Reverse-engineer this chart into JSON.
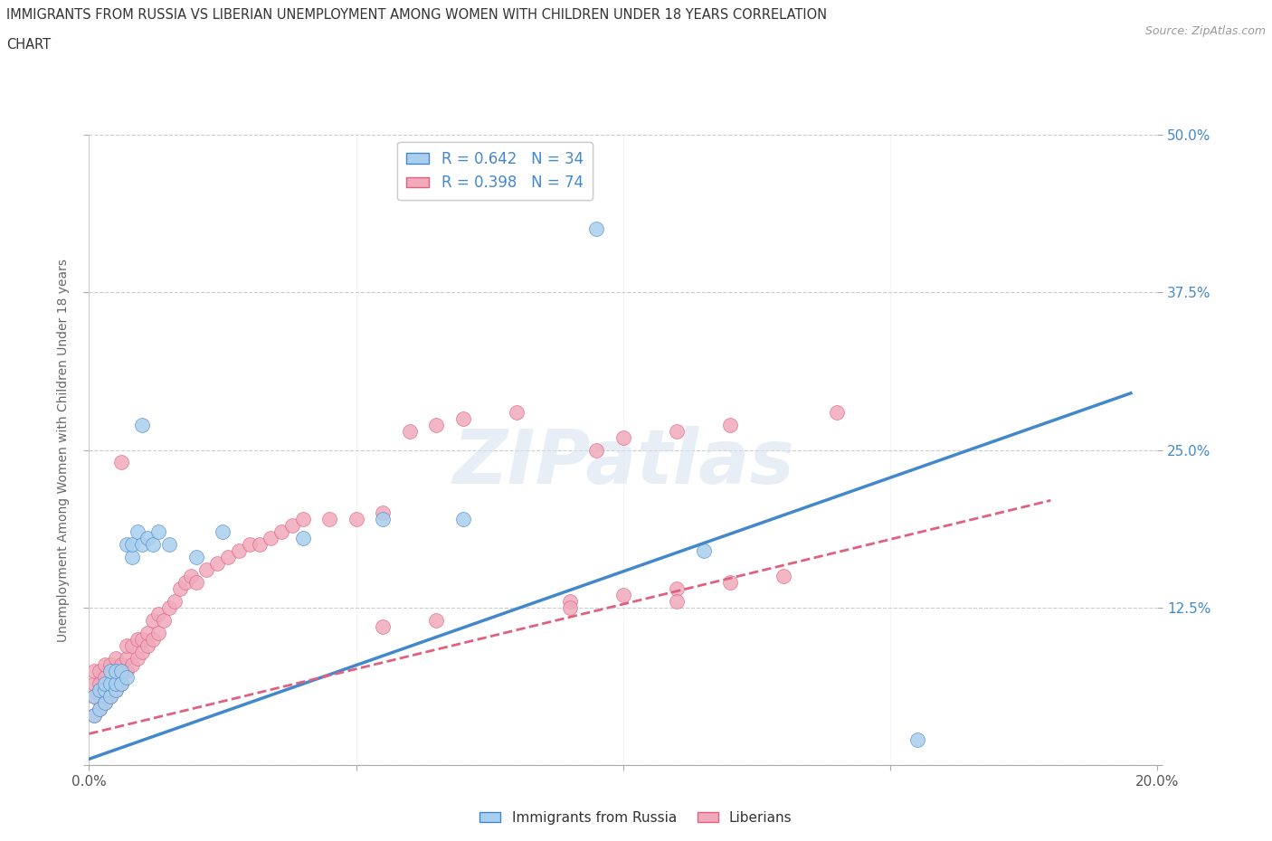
{
  "title_line1": "IMMIGRANTS FROM RUSSIA VS LIBERIAN UNEMPLOYMENT AMONG WOMEN WITH CHILDREN UNDER 18 YEARS CORRELATION",
  "title_line2": "CHART",
  "source": "Source: ZipAtlas.com",
  "ylabel": "Unemployment Among Women with Children Under 18 years",
  "r_russia": 0.642,
  "n_russia": 34,
  "r_liberian": 0.398,
  "n_liberian": 74,
  "xlim": [
    0.0,
    0.2
  ],
  "ylim": [
    0.0,
    0.5
  ],
  "xticks": [
    0.0,
    0.05,
    0.1,
    0.15,
    0.2
  ],
  "yticks": [
    0.0,
    0.125,
    0.25,
    0.375,
    0.5
  ],
  "xticklabels": [
    "0.0%",
    "",
    "",
    "",
    "20.0%"
  ],
  "yticklabels_right": [
    "",
    "12.5%",
    "25.0%",
    "37.5%",
    "50.0%"
  ],
  "color_russia": "#aacfee",
  "color_liberian": "#f0aabb",
  "color_russia_line": "#4488cc",
  "color_liberian_line": "#e06080",
  "legend_russia": "Immigrants from Russia",
  "legend_liberian": "Liberians",
  "watermark": "ZIPatlas",
  "russia_line_x": [
    0.0,
    0.195
  ],
  "russia_line_y": [
    0.005,
    0.295
  ],
  "liberian_line_x": [
    0.0,
    0.18
  ],
  "liberian_line_y": [
    0.025,
    0.21
  ],
  "russia_x": [
    0.001,
    0.001,
    0.002,
    0.002,
    0.003,
    0.003,
    0.003,
    0.004,
    0.004,
    0.004,
    0.005,
    0.005,
    0.005,
    0.006,
    0.006,
    0.007,
    0.007,
    0.008,
    0.008,
    0.009,
    0.01,
    0.01,
    0.011,
    0.012,
    0.013,
    0.015,
    0.02,
    0.025,
    0.04,
    0.055,
    0.07,
    0.095,
    0.115,
    0.155
  ],
  "russia_y": [
    0.04,
    0.055,
    0.045,
    0.06,
    0.05,
    0.06,
    0.065,
    0.055,
    0.065,
    0.075,
    0.06,
    0.065,
    0.075,
    0.065,
    0.075,
    0.07,
    0.175,
    0.165,
    0.175,
    0.185,
    0.175,
    0.27,
    0.18,
    0.175,
    0.185,
    0.175,
    0.165,
    0.185,
    0.18,
    0.195,
    0.195,
    0.425,
    0.17,
    0.02
  ],
  "liberian_x": [
    0.001,
    0.001,
    0.001,
    0.001,
    0.002,
    0.002,
    0.002,
    0.002,
    0.003,
    0.003,
    0.003,
    0.003,
    0.004,
    0.004,
    0.004,
    0.005,
    0.005,
    0.005,
    0.006,
    0.006,
    0.006,
    0.007,
    0.007,
    0.007,
    0.008,
    0.008,
    0.009,
    0.009,
    0.01,
    0.01,
    0.011,
    0.011,
    0.012,
    0.012,
    0.013,
    0.013,
    0.014,
    0.015,
    0.016,
    0.017,
    0.018,
    0.019,
    0.02,
    0.022,
    0.024,
    0.026,
    0.028,
    0.03,
    0.032,
    0.034,
    0.036,
    0.038,
    0.04,
    0.045,
    0.05,
    0.055,
    0.06,
    0.065,
    0.07,
    0.08,
    0.09,
    0.1,
    0.11,
    0.12,
    0.13,
    0.095,
    0.1,
    0.11,
    0.12,
    0.14,
    0.055,
    0.065,
    0.09,
    0.11
  ],
  "liberian_y": [
    0.04,
    0.055,
    0.065,
    0.075,
    0.045,
    0.055,
    0.065,
    0.075,
    0.05,
    0.06,
    0.07,
    0.08,
    0.055,
    0.065,
    0.08,
    0.06,
    0.07,
    0.085,
    0.065,
    0.08,
    0.24,
    0.075,
    0.085,
    0.095,
    0.08,
    0.095,
    0.085,
    0.1,
    0.09,
    0.1,
    0.095,
    0.105,
    0.1,
    0.115,
    0.105,
    0.12,
    0.115,
    0.125,
    0.13,
    0.14,
    0.145,
    0.15,
    0.145,
    0.155,
    0.16,
    0.165,
    0.17,
    0.175,
    0.175,
    0.18,
    0.185,
    0.19,
    0.195,
    0.195,
    0.195,
    0.2,
    0.265,
    0.27,
    0.275,
    0.28,
    0.13,
    0.135,
    0.14,
    0.145,
    0.15,
    0.25,
    0.26,
    0.265,
    0.27,
    0.28,
    0.11,
    0.115,
    0.125,
    0.13
  ]
}
